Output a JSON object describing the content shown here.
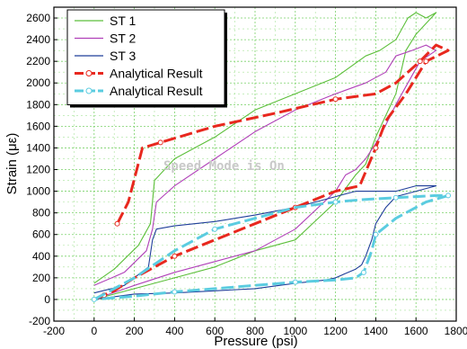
{
  "chart_data": {
    "type": "line",
    "xlabel": "Pressure (psi)",
    "ylabel": "Strain (με)",
    "xlim": [
      -200,
      1800
    ],
    "ylim": [
      -200,
      2700
    ],
    "x_ticks": [
      "-200",
      "0",
      "200",
      "400",
      "600",
      "800",
      "1000",
      "1200",
      "1400",
      "1600",
      "1800"
    ],
    "y_ticks": [
      "-200",
      "0",
      "200",
      "400",
      "600",
      "800",
      "1000",
      "1200",
      "1400",
      "1600",
      "1800",
      "2000",
      "2200",
      "2400",
      "2600"
    ],
    "grid": true,
    "legend_position": "top-left",
    "watermark": "Speed Mode is On",
    "series": [
      {
        "name": "ST 1",
        "color": "#5cbf3a",
        "style": "solid",
        "x": [
          0,
          100,
          220,
          280,
          300,
          400,
          600,
          800,
          1000,
          1200,
          1350,
          1420,
          1500,
          1560,
          1600,
          1650,
          1700,
          1600,
          1550,
          1500,
          1400,
          1350,
          1300,
          1200,
          1000,
          800,
          600,
          400,
          200,
          0
        ],
        "y": [
          150,
          280,
          500,
          700,
          1100,
          1300,
          1500,
          1750,
          1900,
          2050,
          2250,
          2300,
          2400,
          2600,
          2650,
          2600,
          2650,
          2450,
          2300,
          1900,
          1500,
          1250,
          1150,
          900,
          550,
          450,
          300,
          200,
          100,
          0
        ]
      },
      {
        "name": "ST 2",
        "color": "#b040b8",
        "style": "solid",
        "x": [
          0,
          150,
          260,
          290,
          310,
          400,
          600,
          800,
          1000,
          1200,
          1350,
          1450,
          1500,
          1580,
          1650,
          1700,
          1620,
          1560,
          1500,
          1420,
          1350,
          1300,
          1250,
          1200,
          1000,
          800,
          600,
          400,
          200,
          0
        ],
        "y": [
          130,
          250,
          450,
          650,
          900,
          1050,
          1300,
          1550,
          1750,
          1900,
          2000,
          2100,
          2250,
          2300,
          2350,
          2300,
          2200,
          2000,
          1800,
          1500,
          1300,
          1200,
          1150,
          1000,
          650,
          450,
          350,
          250,
          130,
          0
        ]
      },
      {
        "name": "ST 3",
        "color": "#1f3e99",
        "style": "solid",
        "x": [
          0,
          150,
          270,
          290,
          310,
          400,
          600,
          800,
          1000,
          1200,
          1300,
          1400,
          1500,
          1600,
          1700,
          1600,
          1500,
          1450,
          1400,
          1380,
          1350,
          1330,
          1300,
          1250,
          1200,
          1150,
          1000,
          800,
          600,
          400,
          200,
          0
        ],
        "y": [
          60,
          130,
          300,
          550,
          650,
          680,
          720,
          780,
          850,
          950,
          1000,
          1000,
          1000,
          1050,
          1050,
          1000,
          950,
          850,
          700,
          550,
          400,
          320,
          280,
          240,
          200,
          180,
          150,
          100,
          80,
          60,
          50,
          0
        ]
      },
      {
        "name": "Analytical Result",
        "color": "#e8281e",
        "style": "dashed-markers",
        "x": [
          115,
          170,
          240,
          330,
          600,
          900,
          1200,
          1400,
          1500,
          1620,
          1700,
          1760,
          1650,
          1550,
          1450,
          1400,
          1320,
          1200,
          1000,
          800,
          600,
          400,
          200,
          100,
          50,
          0
        ],
        "y": [
          700,
          900,
          1400,
          1450,
          1600,
          1720,
          1850,
          1900,
          2000,
          2200,
          2350,
          2300,
          2200,
          1900,
          1650,
          1400,
          1050,
          1000,
          850,
          700,
          550,
          400,
          200,
          80,
          40,
          0
        ]
      },
      {
        "name": "Analytical Result",
        "color": "#5bcce0",
        "style": "dashed-markers",
        "x": [
          0,
          200,
          400,
          600,
          800,
          1000,
          1200,
          1320,
          1400,
          1500,
          1600,
          1700,
          1760,
          1650,
          1500,
          1400,
          1380,
          1360,
          1340,
          1300,
          1200,
          1000,
          800,
          600,
          400,
          200,
          0
        ],
        "y": [
          0,
          200,
          450,
          650,
          750,
          850,
          900,
          920,
          930,
          940,
          950,
          960,
          960,
          900,
          750,
          600,
          450,
          350,
          250,
          200,
          180,
          160,
          130,
          100,
          70,
          30,
          0
        ]
      }
    ]
  }
}
